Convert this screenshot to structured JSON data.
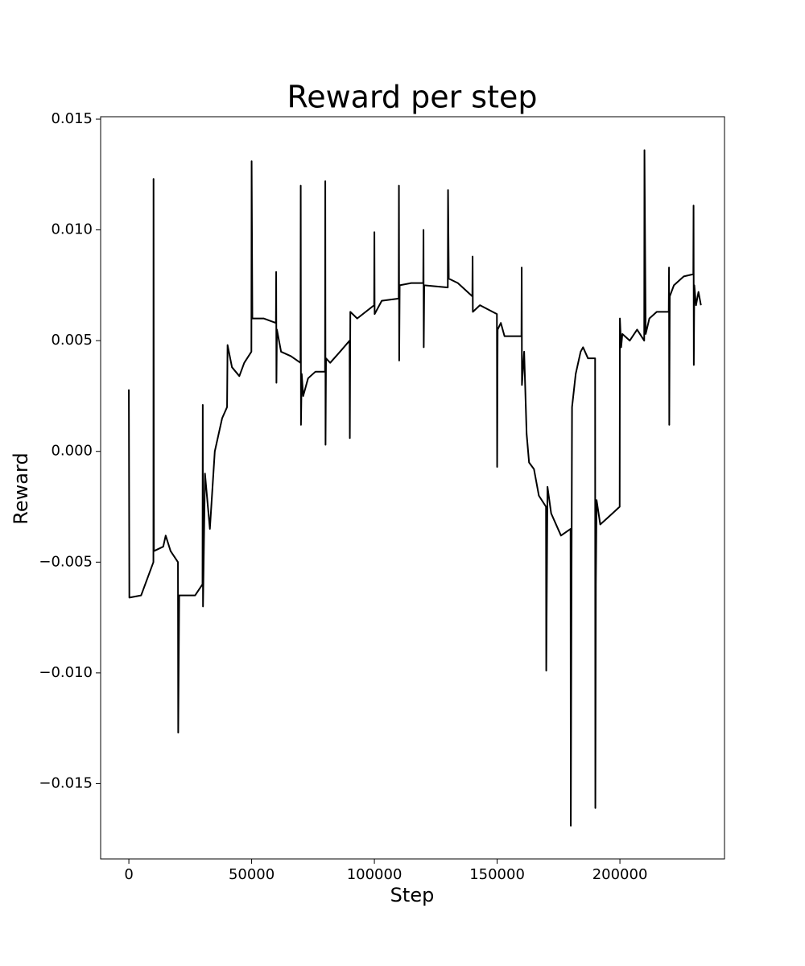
{
  "chart_data": {
    "type": "line",
    "title": "Reward per step",
    "x_label": "Step",
    "y_label": "Reward",
    "color": "#000000",
    "xlim": [
      -11500,
      242600
    ],
    "ylim": [
      -0.0184,
      0.01511
    ],
    "xticks": [
      0,
      50000,
      100000,
      150000,
      200000
    ],
    "yticks": [
      {
        "value": -0.015,
        "label": "−0.015"
      },
      {
        "value": -0.01,
        "label": "−0.010"
      },
      {
        "value": -0.005,
        "label": "−0.005"
      },
      {
        "value": 0,
        "label": "0.000"
      },
      0.005,
      {
        "value": 0.01,
        "label": "0.010"
      },
      0.015
    ],
    "x": [
      0,
      200,
      5000,
      10000,
      10050,
      10200,
      14000,
      15000,
      17000,
      20000,
      20100,
      20500,
      27000,
      30000,
      30100,
      30200,
      31000,
      33000,
      35000,
      38000,
      40000,
      40200,
      42000,
      45000,
      47000,
      49900,
      50000,
      50300,
      55000,
      59900,
      60000,
      60100,
      60300,
      62000,
      66000,
      69900,
      70000,
      70100,
      70400,
      71000,
      73000,
      76000,
      79900,
      80000,
      80100,
      80300,
      82000,
      86000,
      89900,
      90000,
      90200,
      93000,
      99900,
      100000,
      100100,
      103000,
      109900,
      110000,
      110100,
      110300,
      115000,
      119900,
      120000,
      120100,
      120300,
      129900,
      130000,
      130300,
      134000,
      139900,
      140000,
      140100,
      143000,
      149900,
      150000,
      150200,
      151500,
      153000,
      159900,
      160000,
      160100,
      161000,
      162000,
      163000,
      165000,
      167000,
      169900,
      170000,
      170500,
      172000,
      174000,
      176000,
      179900,
      180000,
      180500,
      182000,
      184000,
      185000,
      187000,
      189900,
      190000,
      190200,
      190500,
      192000,
      195000,
      199900,
      200000,
      200500,
      201000,
      204000,
      207000,
      209900,
      210000,
      210500,
      212000,
      215000,
      219900,
      220000,
      220100,
      220300,
      222000,
      226000,
      229900,
      230000,
      230100,
      230300,
      231000,
      232000,
      233000
    ],
    "values": [
      0.0028,
      -0.0066,
      -0.0065,
      -0.005,
      0.0123,
      -0.0045,
      -0.0043,
      -0.0038,
      -0.0045,
      -0.005,
      -0.0127,
      -0.0065,
      -0.0065,
      -0.006,
      0.0021,
      -0.007,
      -0.001,
      -0.0035,
      0.0,
      0.0015,
      0.002,
      0.0048,
      0.0038,
      0.0034,
      0.004,
      0.0045,
      0.0131,
      0.006,
      0.006,
      0.0058,
      0.0081,
      0.0031,
      0.0055,
      0.0045,
      0.0043,
      0.004,
      0.012,
      0.0012,
      0.0035,
      0.0025,
      0.0033,
      0.0036,
      0.0036,
      0.0122,
      0.0003,
      0.0042,
      0.004,
      0.0045,
      0.005,
      0.0006,
      0.0063,
      0.006,
      0.0066,
      0.0099,
      0.0062,
      0.0068,
      0.0069,
      0.012,
      0.0041,
      0.0075,
      0.0076,
      0.0076,
      0.01,
      0.0047,
      0.0075,
      0.0074,
      0.0118,
      0.0078,
      0.0076,
      0.007,
      0.0088,
      0.0063,
      0.0066,
      0.0062,
      -0.0007,
      0.0055,
      0.0058,
      0.0052,
      0.0052,
      0.0083,
      0.003,
      0.0045,
      0.0008,
      -0.0005,
      -0.0008,
      -0.002,
      -0.0025,
      -0.0099,
      -0.0016,
      -0.0028,
      -0.0033,
      -0.0038,
      -0.0035,
      -0.0169,
      0.002,
      0.0035,
      0.0045,
      0.0047,
      0.0042,
      0.0042,
      -0.0161,
      -0.006,
      -0.0022,
      -0.0033,
      -0.003,
      -0.0025,
      0.006,
      0.0047,
      0.0053,
      0.005,
      0.0055,
      0.005,
      0.0136,
      0.0053,
      0.006,
      0.0063,
      0.0063,
      0.0083,
      0.0012,
      0.007,
      0.0075,
      0.0079,
      0.008,
      0.0111,
      0.0039,
      0.0075,
      0.0066,
      0.0072,
      0.0066
    ]
  }
}
